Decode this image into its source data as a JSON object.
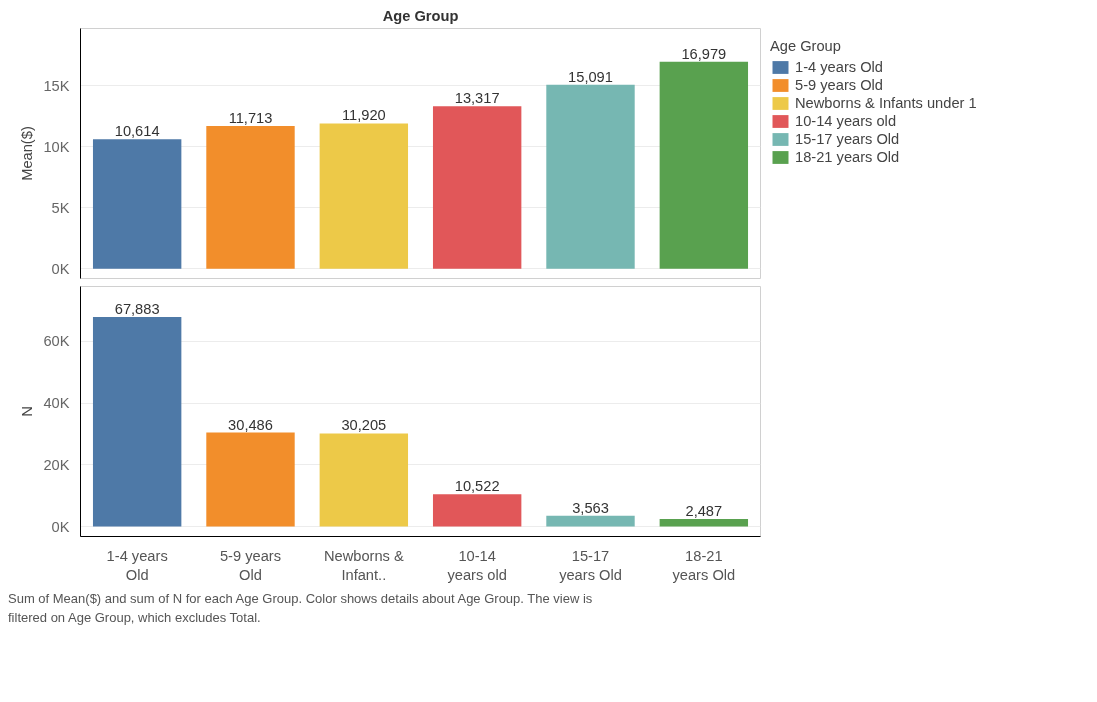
{
  "chart_data": [
    {
      "type": "bar",
      "title": "Age Group",
      "ylabel": "Mean($)",
      "categories": [
        null,
        null,
        null,
        null,
        null,
        null
      ],
      "series": [
        {
          "name": "1-4 years Old",
          "color": "#4e79a7",
          "values": [
            10614,
            null,
            null,
            null,
            null,
            null
          ],
          "value_labels": [
            "10,614",
            null,
            null,
            null,
            null,
            null
          ]
        },
        {
          "name": "5-9 years Old",
          "color": "#f28e2b",
          "values": [
            null,
            11713,
            null,
            null,
            null,
            null
          ],
          "value_labels": [
            null,
            "11,713",
            null,
            null,
            null,
            null
          ]
        },
        {
          "name": "Newborns & Infants under 1",
          "color": "#edc948",
          "values": [
            null,
            null,
            11920,
            null,
            null,
            null
          ],
          "value_labels": [
            null,
            null,
            "11,920",
            null,
            null,
            null
          ]
        },
        {
          "name": "10-14 years old",
          "color": "#e15759",
          "values": [
            null,
            null,
            null,
            13317,
            null,
            null
          ],
          "value_labels": [
            null,
            null,
            null,
            "13,317",
            null,
            null
          ]
        },
        {
          "name": "15-17 years Old",
          "color": "#76b7b2",
          "values": [
            null,
            null,
            null,
            null,
            15091,
            null
          ],
          "value_labels": [
            null,
            null,
            null,
            null,
            "15,091",
            null
          ]
        },
        {
          "name": "18-21 years Old",
          "color": "#59a14f",
          "values": [
            null,
            null,
            null,
            null,
            null,
            16979
          ],
          "value_labels": [
            null,
            null,
            null,
            null,
            null,
            "16,979"
          ]
        }
      ],
      "ylim": [
        -800,
        19700
      ],
      "yticks": [
        {
          "value": 0,
          "label": "0K"
        },
        {
          "value": 5000,
          "label": "5K"
        },
        {
          "value": 10000,
          "label": "10K"
        },
        {
          "value": 15000,
          "label": "15K"
        }
      ],
      "grid": "y",
      "legend": "right",
      "legend_title": "Age Group",
      "tick_labels": "y"
    },
    {
      "type": "bar",
      "ylabel": "N",
      "categories": [
        "1-4 years Old",
        "5-9 years Old",
        "Newborns & Infant..",
        "10-14 years old",
        "15-17 years Old",
        "18-21 years Old"
      ],
      "values": [
        67883,
        30486,
        30205,
        10522,
        3563,
        2487
      ],
      "value_labels": [
        "67,883",
        "30,486",
        "30,205",
        "10,522",
        "3,563",
        "2,487"
      ],
      "colors": [
        "#4e79a7",
        "#f28e2b",
        "#edc948",
        "#e15759",
        "#76b7b2",
        "#59a14f"
      ],
      "ylim": [
        -3200,
        77800
      ],
      "yticks": [
        {
          "value": 0,
          "label": "0K"
        },
        {
          "value": 20000,
          "label": "20K"
        },
        {
          "value": 40000,
          "label": "40K"
        },
        {
          "value": 60000,
          "label": "60K"
        }
      ],
      "grid": "y",
      "annotations": [
        "Sum of Mean($) and sum of N for each Age Group.  Color shows details about Age Group. The view is filtered on Age Group, which excludes Total."
      ]
    }
  ]
}
